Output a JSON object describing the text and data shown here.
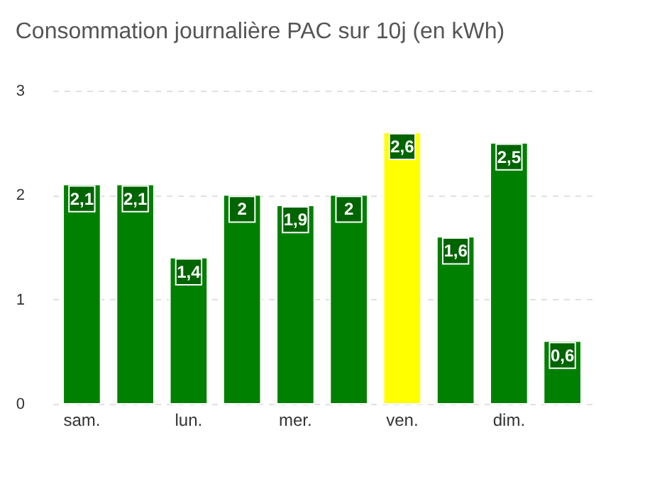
{
  "chart_data": {
    "type": "bar",
    "title": "Consommation journalière PAC sur 10j (en kWh)",
    "categories": [
      "sam.",
      null,
      "lun.",
      null,
      "mer.",
      null,
      "ven.",
      null,
      "dim.",
      null
    ],
    "values": [
      2.1,
      2.1,
      1.4,
      2,
      1.9,
      2,
      2.6,
      1.6,
      2.5,
      0.6
    ],
    "value_labels": [
      "2,1",
      "2,1",
      "1,4",
      "2",
      "1,9",
      "2",
      "2,6",
      "1,6",
      "2,5",
      "0,6"
    ],
    "colors": [
      "#008000",
      "#008000",
      "#008000",
      "#008000",
      "#008000",
      "#008000",
      "#ffff00",
      "#008000",
      "#008000",
      "#008000"
    ],
    "ylim": [
      0,
      3
    ],
    "yticks": [
      0,
      1,
      2,
      3
    ],
    "grid": "y"
  }
}
